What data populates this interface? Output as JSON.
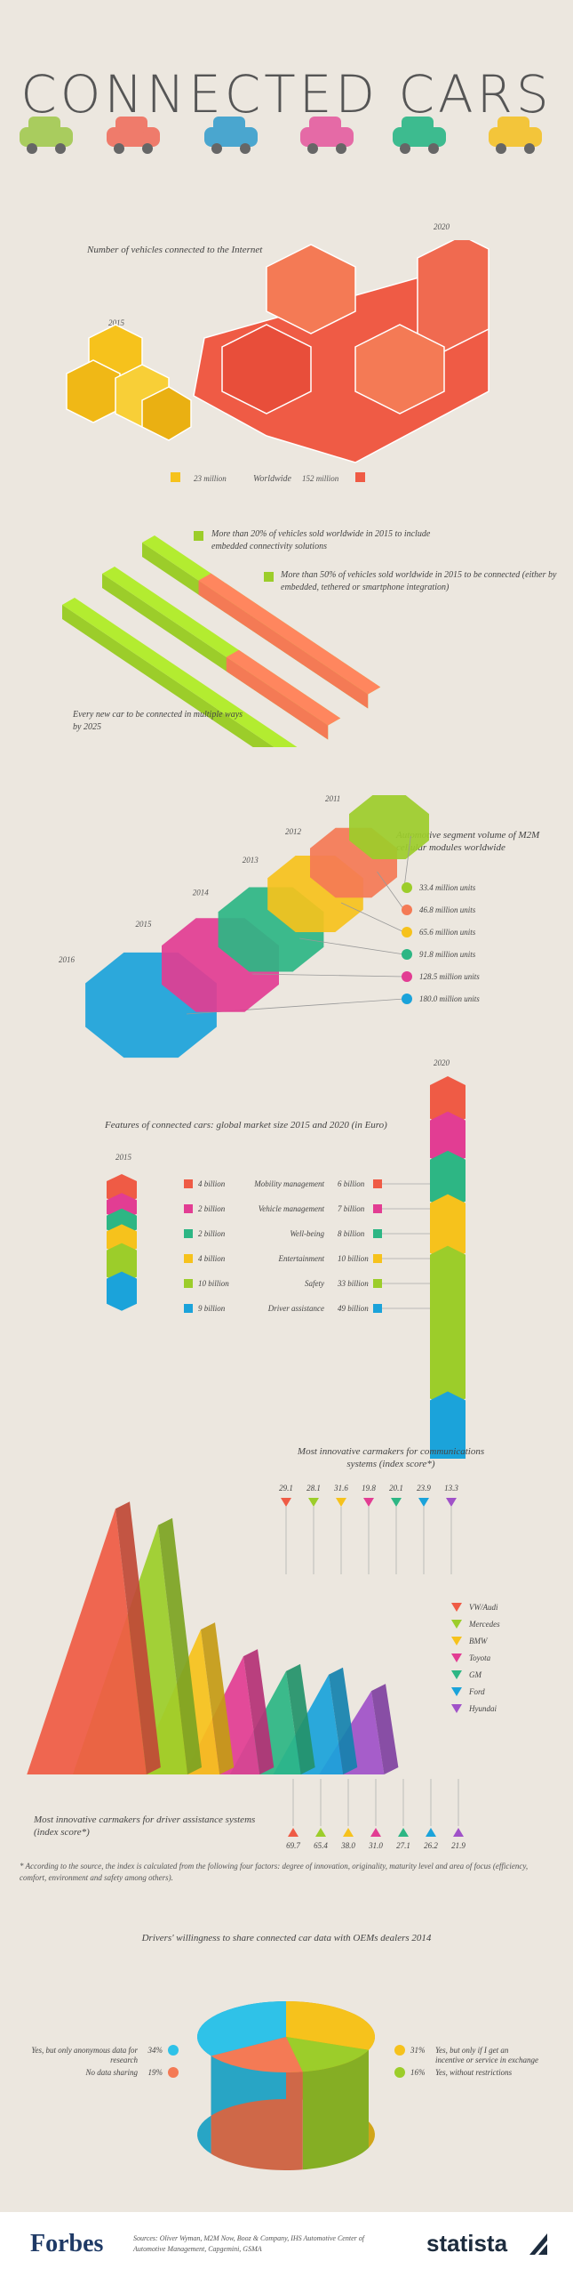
{
  "header": {
    "title": "CONNECTED CARS"
  },
  "colors": {
    "red": "#ef5b45",
    "orange": "#f47a55",
    "yellow": "#f6c21c",
    "lime": "#9ccd2a",
    "green": "#2db684",
    "magenta": "#e23d93",
    "blue": "#1ba3da",
    "purple": "#a052c8",
    "bg": "#ece7df"
  },
  "chart_data": [
    {
      "type": "bar",
      "title": "Number of vehicles connected to the Internet",
      "categories": [
        "2015",
        "2020"
      ],
      "values": [
        23,
        152
      ],
      "labels": {
        "y2015": "2015",
        "y2020": "2020",
        "v2015": "23 million",
        "v2020": "152 million",
        "mid": "Worldwide"
      }
    },
    {
      "type": "bar",
      "annotations": [
        "More than 20% of vehicles sold worldwide in 2015 to include embedded connectivity solutions",
        "More than 50% of vehicles sold worldwide in 2015 to be connected (either by embedded, tethered or smartphone integration)",
        "Every new car to be connected in multiple ways by 2025"
      ],
      "values_percent": [
        20,
        50,
        100
      ]
    },
    {
      "type": "bar",
      "title": "Automotive segment volume of M2M cellular modules worldwide",
      "categories": [
        "2011",
        "2012",
        "2013",
        "2014",
        "2015",
        "2016"
      ],
      "values": [
        33.4,
        46.8,
        65.6,
        91.8,
        128.5,
        180.0
      ],
      "value_labels": [
        "33.4 million units",
        "46.8 million units",
        "65.6 million units",
        "91.8 million units",
        "128.5 million units",
        "180.0 million units"
      ]
    },
    {
      "type": "bar",
      "title": "Features of connected cars: global market size 2015 and 2020 (in Euro)",
      "categories": [
        "Mobility management",
        "Vehicle management",
        "Well-being",
        "Entertainment",
        "Safety",
        "Driver assistance"
      ],
      "series": [
        {
          "name": "2015",
          "values": [
            4,
            2,
            2,
            4,
            10,
            9
          ],
          "labels": [
            "4 billion",
            "2 billion",
            "2 billion",
            "4 billion",
            "10 billion",
            "9 billion"
          ]
        },
        {
          "name": "2020",
          "values": [
            6,
            7,
            8,
            10,
            33,
            49
          ],
          "labels": [
            "6 billion",
            "7 billion",
            "8 billion",
            "10 billion",
            "33 billion",
            "49 billion"
          ]
        }
      ]
    },
    {
      "type": "bar",
      "title": "Most innovative carmakers for communications systems (index score*)",
      "title2": "Most innovative carmakers for driver assistance systems (index score*)",
      "categories": [
        "VW/Audi",
        "Mercedes",
        "BMW",
        "Toyota",
        "GM",
        "Ford",
        "Hyundai"
      ],
      "series": [
        {
          "name": "communications systems",
          "values": [
            29.1,
            28.1,
            31.6,
            19.8,
            20.1,
            23.9,
            13.3
          ]
        },
        {
          "name": "driver assistance systems",
          "values": [
            69.7,
            65.4,
            38.0,
            31.0,
            27.1,
            26.2,
            21.9
          ]
        }
      ],
      "footnote": "* According to the source, the index is calculated from the following four factors: degree of innovation, originality, maturity level and area of focus (efficiency, comfort, environment and safety among others)."
    },
    {
      "type": "pie",
      "title": "Drivers' willingness to share connected car data with OEMs dealers 2014",
      "categories": [
        "Yes, but only if I get an incentive or service in exchange",
        "Yes, without restrictions",
        "No data sharing",
        "Yes, but only anonymous data for research"
      ],
      "values": [
        31,
        16,
        19,
        34
      ],
      "value_labels": [
        "31%",
        "16%",
        "19%",
        "34%"
      ]
    }
  ],
  "footer": {
    "brand": "Forbes",
    "sources": "Sources: Oliver Wyman, M2M Now, Booz & Company, IHS Automotive Center of Automotive Management, Capgemini, GSMA",
    "statista": "statista"
  }
}
